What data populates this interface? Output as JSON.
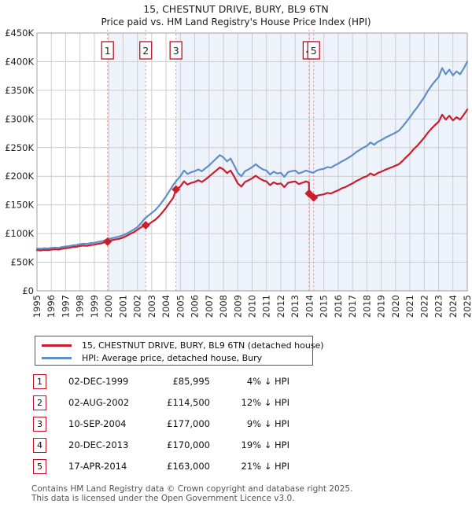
{
  "title": "15, CHESTNUT DRIVE, BURY, BL9 6TN",
  "subtitle": "Price paid vs. HM Land Registry's House Price Index (HPI)",
  "colors": {
    "price_line": "#c81e2e",
    "hpi_line": "#5e8fc7",
    "band_fill": "#eef2fa",
    "grid": "#cccccc",
    "plot_border": "#a0a0a0",
    "sale_dashed_line": "#ef8e8e",
    "marker_box_border": "#bb1122",
    "axis_text": "#222222",
    "footer_text": "#555555"
  },
  "chart_data": {
    "type": "line",
    "title": "15, CHESTNUT DRIVE, BURY, BL9 6TN",
    "subtitle": "Price paid vs. HM Land Registry's House Price Index (HPI)",
    "xlim": [
      1995,
      2025
    ],
    "ylim": [
      0,
      450000
    ],
    "grid": true,
    "x_ticks": [
      1995,
      1996,
      1997,
      1998,
      1999,
      2000,
      2001,
      2002,
      2003,
      2004,
      2005,
      2006,
      2007,
      2008,
      2009,
      2010,
      2011,
      2012,
      2013,
      2014,
      2015,
      2016,
      2017,
      2018,
      2019,
      2020,
      2021,
      2022,
      2023,
      2024,
      2025
    ],
    "y_ticks": [
      {
        "v": 0,
        "label": "£0"
      },
      {
        "v": 50000,
        "label": "£50K"
      },
      {
        "v": 100000,
        "label": "£100K"
      },
      {
        "v": 150000,
        "label": "£150K"
      },
      {
        "v": 200000,
        "label": "£200K"
      },
      {
        "v": 250000,
        "label": "£250K"
      },
      {
        "v": 300000,
        "label": "£300K"
      },
      {
        "v": 350000,
        "label": "£350K"
      },
      {
        "v": 400000,
        "label": "£400K"
      },
      {
        "v": 450000,
        "label": "£450K"
      }
    ],
    "shaded_bands": [
      [
        1999.92,
        2002.58
      ],
      [
        2004.69,
        2025
      ]
    ],
    "sales_markers": [
      {
        "num": "1",
        "x": 1999.92,
        "price": 85995
      },
      {
        "num": "2",
        "x": 2002.58,
        "price": 114500
      },
      {
        "num": "3",
        "x": 2004.69,
        "price": 177000
      },
      {
        "num": "4",
        "x": 2013.97,
        "price": 170000
      },
      {
        "num": "5",
        "x": 2014.29,
        "price": 163000
      }
    ],
    "series": [
      {
        "name": "HPI: Average price, detached house, Bury",
        "color_key": "hpi_line",
        "points": [
          [
            1995,
            74000
          ],
          [
            1995.25,
            73500
          ],
          [
            1995.5,
            74500
          ],
          [
            1995.75,
            74000
          ],
          [
            1996,
            75000
          ],
          [
            1996.25,
            75500
          ],
          [
            1996.5,
            75000
          ],
          [
            1996.75,
            76500
          ],
          [
            1997,
            77500
          ],
          [
            1997.25,
            78000
          ],
          [
            1997.5,
            79500
          ],
          [
            1997.75,
            80000
          ],
          [
            1998,
            81500
          ],
          [
            1998.25,
            82500
          ],
          [
            1998.5,
            82000
          ],
          [
            1998.75,
            83500
          ],
          [
            1999,
            84000
          ],
          [
            1999.25,
            85500
          ],
          [
            1999.5,
            86500
          ],
          [
            1999.75,
            88500
          ],
          [
            2000,
            90500
          ],
          [
            2000.25,
            92000
          ],
          [
            2000.5,
            93500
          ],
          [
            2000.75,
            95000
          ],
          [
            2001,
            97000
          ],
          [
            2001.25,
            100000
          ],
          [
            2001.5,
            103500
          ],
          [
            2001.75,
            107000
          ],
          [
            2002,
            111000
          ],
          [
            2002.25,
            118000
          ],
          [
            2002.5,
            126000
          ],
          [
            2002.75,
            131000
          ],
          [
            2003,
            136000
          ],
          [
            2003.25,
            141000
          ],
          [
            2003.5,
            148000
          ],
          [
            2003.75,
            156000
          ],
          [
            2004,
            165000
          ],
          [
            2004.25,
            175000
          ],
          [
            2004.5,
            185000
          ],
          [
            2004.75,
            193000
          ],
          [
            2005,
            200000
          ],
          [
            2005.25,
            210000
          ],
          [
            2005.5,
            204000
          ],
          [
            2005.75,
            207000
          ],
          [
            2006,
            209000
          ],
          [
            2006.25,
            212000
          ],
          [
            2006.5,
            209000
          ],
          [
            2006.75,
            214000
          ],
          [
            2007,
            219000
          ],
          [
            2007.25,
            225000
          ],
          [
            2007.5,
            231000
          ],
          [
            2007.75,
            237000
          ],
          [
            2008,
            233000
          ],
          [
            2008.25,
            226000
          ],
          [
            2008.5,
            231000
          ],
          [
            2008.75,
            219000
          ],
          [
            2009,
            206000
          ],
          [
            2009.25,
            200000
          ],
          [
            2009.5,
            209000
          ],
          [
            2009.75,
            212000
          ],
          [
            2010,
            216000
          ],
          [
            2010.25,
            221000
          ],
          [
            2010.5,
            216000
          ],
          [
            2010.75,
            212000
          ],
          [
            2011,
            210000
          ],
          [
            2011.25,
            203000
          ],
          [
            2011.5,
            208000
          ],
          [
            2011.75,
            205000
          ],
          [
            2012,
            206000
          ],
          [
            2012.25,
            199000
          ],
          [
            2012.5,
            207000
          ],
          [
            2012.75,
            209000
          ],
          [
            2013,
            210000
          ],
          [
            2013.25,
            205000
          ],
          [
            2013.5,
            207000
          ],
          [
            2013.75,
            210000
          ],
          [
            2014,
            208000
          ],
          [
            2014.25,
            206000
          ],
          [
            2014.5,
            210000
          ],
          [
            2014.75,
            212000
          ],
          [
            2015,
            213000
          ],
          [
            2015.25,
            216000
          ],
          [
            2015.5,
            215000
          ],
          [
            2015.75,
            219000
          ],
          [
            2016,
            222000
          ],
          [
            2016.25,
            226000
          ],
          [
            2016.5,
            229000
          ],
          [
            2016.75,
            233000
          ],
          [
            2017,
            237000
          ],
          [
            2017.25,
            242000
          ],
          [
            2017.5,
            246000
          ],
          [
            2017.75,
            250000
          ],
          [
            2018,
            253000
          ],
          [
            2018.25,
            259000
          ],
          [
            2018.5,
            255000
          ],
          [
            2018.75,
            260000
          ],
          [
            2019,
            263000
          ],
          [
            2019.25,
            267000
          ],
          [
            2019.5,
            270000
          ],
          [
            2019.75,
            273000
          ],
          [
            2020,
            276000
          ],
          [
            2020.25,
            280000
          ],
          [
            2020.5,
            287000
          ],
          [
            2020.75,
            295000
          ],
          [
            2021,
            303000
          ],
          [
            2021.25,
            312000
          ],
          [
            2021.5,
            320000
          ],
          [
            2021.75,
            329000
          ],
          [
            2022,
            338000
          ],
          [
            2022.25,
            349000
          ],
          [
            2022.5,
            358000
          ],
          [
            2022.75,
            366000
          ],
          [
            2023,
            373000
          ],
          [
            2023.25,
            389000
          ],
          [
            2023.5,
            378000
          ],
          [
            2023.75,
            386000
          ],
          [
            2024,
            376000
          ],
          [
            2024.25,
            383000
          ],
          [
            2024.5,
            378000
          ],
          [
            2024.75,
            388000
          ],
          [
            2025,
            400000
          ]
        ]
      },
      {
        "name": "15, CHESTNUT DRIVE, BURY, BL9 6TN (detached house)",
        "color_key": "price_line",
        "points": [
          [
            1995,
            71000
          ],
          [
            1995.25,
            70500
          ],
          [
            1995.5,
            71500
          ],
          [
            1995.75,
            71000
          ],
          [
            1996,
            72000
          ],
          [
            1996.25,
            72500
          ],
          [
            1996.5,
            72000
          ],
          [
            1996.75,
            73500
          ],
          [
            1997,
            74500
          ],
          [
            1997.25,
            75000
          ],
          [
            1997.5,
            76500
          ],
          [
            1997.75,
            77000
          ],
          [
            1998,
            78500
          ],
          [
            1998.25,
            79000
          ],
          [
            1998.5,
            78500
          ],
          [
            1998.75,
            80000
          ],
          [
            1999,
            80500
          ],
          [
            1999.25,
            82000
          ],
          [
            1999.5,
            83000
          ],
          [
            1999.75,
            85000
          ],
          [
            1999.92,
            85995
          ],
          [
            2000,
            87000
          ],
          [
            2000.25,
            88500
          ],
          [
            2000.5,
            90000
          ],
          [
            2000.75,
            91000
          ],
          [
            2001,
            93000
          ],
          [
            2001.25,
            96000
          ],
          [
            2001.5,
            99500
          ],
          [
            2001.75,
            102500
          ],
          [
            2002,
            106500
          ],
          [
            2002.25,
            111000
          ],
          [
            2002.5,
            113500
          ],
          [
            2002.58,
            114500
          ],
          [
            2002.75,
            115500
          ],
          [
            2003,
            120000
          ],
          [
            2003.25,
            124000
          ],
          [
            2003.5,
            130000
          ],
          [
            2003.75,
            137000
          ],
          [
            2004,
            145000
          ],
          [
            2004.25,
            154000
          ],
          [
            2004.5,
            162500
          ],
          [
            2004.69,
            177000
          ],
          [
            2005,
            182000
          ],
          [
            2005.25,
            191000
          ],
          [
            2005.5,
            185500
          ],
          [
            2005.75,
            188500
          ],
          [
            2006,
            190000
          ],
          [
            2006.25,
            193000
          ],
          [
            2006.5,
            190000
          ],
          [
            2006.75,
            194500
          ],
          [
            2007,
            199500
          ],
          [
            2007.25,
            205000
          ],
          [
            2007.5,
            210000
          ],
          [
            2007.75,
            215500
          ],
          [
            2008,
            212000
          ],
          [
            2008.25,
            205500
          ],
          [
            2008.5,
            210000
          ],
          [
            2008.75,
            199500
          ],
          [
            2009,
            187500
          ],
          [
            2009.25,
            182000
          ],
          [
            2009.5,
            190000
          ],
          [
            2009.75,
            193000
          ],
          [
            2010,
            196500
          ],
          [
            2010.25,
            201000
          ],
          [
            2010.5,
            196500
          ],
          [
            2010.75,
            193000
          ],
          [
            2011,
            191000
          ],
          [
            2011.25,
            184500
          ],
          [
            2011.5,
            189500
          ],
          [
            2011.75,
            186500
          ],
          [
            2012,
            187500
          ],
          [
            2012.25,
            181000
          ],
          [
            2012.5,
            188500
          ],
          [
            2012.75,
            190000
          ],
          [
            2013,
            191000
          ],
          [
            2013.25,
            186500
          ],
          [
            2013.5,
            188500
          ],
          [
            2013.75,
            191000
          ],
          [
            2013.96,
            189000
          ],
          [
            2013.97,
            170000
          ],
          [
            2014.29,
            163000
          ],
          [
            2014.5,
            166000
          ],
          [
            2014.75,
            167500
          ],
          [
            2015,
            168500
          ],
          [
            2015.25,
            171000
          ],
          [
            2015.5,
            170000
          ],
          [
            2015.75,
            173000
          ],
          [
            2016,
            175500
          ],
          [
            2016.25,
            179000
          ],
          [
            2016.5,
            181000
          ],
          [
            2016.75,
            184500
          ],
          [
            2017,
            187500
          ],
          [
            2017.25,
            191500
          ],
          [
            2017.5,
            194500
          ],
          [
            2017.75,
            198000
          ],
          [
            2018,
            200000
          ],
          [
            2018.25,
            205000
          ],
          [
            2018.5,
            201500
          ],
          [
            2018.75,
            205500
          ],
          [
            2019,
            208000
          ],
          [
            2019.25,
            211000
          ],
          [
            2019.5,
            213500
          ],
          [
            2019.75,
            216000
          ],
          [
            2020,
            218500
          ],
          [
            2020.25,
            221500
          ],
          [
            2020.5,
            227000
          ],
          [
            2020.75,
            233500
          ],
          [
            2021,
            239500
          ],
          [
            2021.25,
            247000
          ],
          [
            2021.5,
            253000
          ],
          [
            2021.75,
            260000
          ],
          [
            2022,
            267500
          ],
          [
            2022.25,
            276000
          ],
          [
            2022.5,
            283000
          ],
          [
            2022.75,
            289500
          ],
          [
            2023,
            295000
          ],
          [
            2023.25,
            307500
          ],
          [
            2023.5,
            299000
          ],
          [
            2023.75,
            305500
          ],
          [
            2024,
            297500
          ],
          [
            2024.25,
            303000
          ],
          [
            2024.5,
            299000
          ],
          [
            2024.75,
            307000
          ],
          [
            2025,
            316500
          ]
        ]
      }
    ]
  },
  "legend": {
    "entries": [
      {
        "label": "15, CHESTNUT DRIVE, BURY, BL9 6TN (detached house)",
        "color_key": "price_line"
      },
      {
        "label": "HPI: Average price, detached house, Bury",
        "color_key": "hpi_line"
      }
    ]
  },
  "table": {
    "rows": [
      {
        "num": "1",
        "date": "02-DEC-1999",
        "price": "£85,995",
        "hpi_diff": "4% ↓ HPI"
      },
      {
        "num": "2",
        "date": "02-AUG-2002",
        "price": "£114,500",
        "hpi_diff": "12% ↓ HPI"
      },
      {
        "num": "3",
        "date": "10-SEP-2004",
        "price": "£177,000",
        "hpi_diff": "9% ↓ HPI"
      },
      {
        "num": "4",
        "date": "20-DEC-2013",
        "price": "£170,000",
        "hpi_diff": "19% ↓ HPI"
      },
      {
        "num": "5",
        "date": "17-APR-2014",
        "price": "£163,000",
        "hpi_diff": "21% ↓ HPI"
      }
    ]
  },
  "footer": {
    "line1": "Contains HM Land Registry data © Crown copyright and database right 2025.",
    "line2": "This data is licensed under the Open Government Licence v3.0."
  }
}
